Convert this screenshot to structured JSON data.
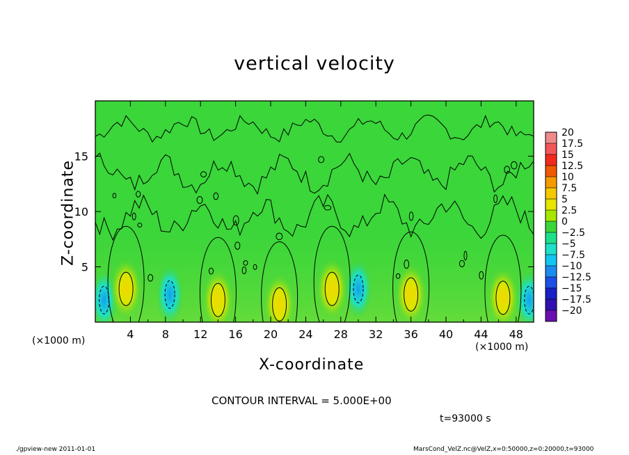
{
  "chart_data": {
    "type": "heatmap",
    "title": "vertical velocity",
    "xlabel": "X-coordinate",
    "ylabel": "Z-coordinate",
    "x_unit": "(×1000 m)",
    "xlim": [
      0,
      50
    ],
    "ylim": [
      0,
      20
    ],
    "x_ticks": [
      4,
      8,
      12,
      16,
      20,
      24,
      28,
      32,
      36,
      40,
      44,
      48
    ],
    "y_ticks": [
      5,
      10,
      15
    ],
    "colorbar": {
      "levels": [
        20,
        17.5,
        15,
        12.5,
        10,
        7.5,
        5,
        2.5,
        0,
        -2.5,
        -5,
        -7.5,
        -10,
        -12.5,
        -15,
        -17.5,
        -20
      ],
      "labels": [
        "20",
        "17.5",
        "15",
        "12.5",
        "10",
        "7.5",
        "5",
        "2.5",
        "0",
        "−2.5",
        "−5",
        "−7.5",
        "−10",
        "−12.5",
        "−15",
        "−17.5",
        "−20"
      ],
      "colors": [
        "#f08a8a",
        "#f25858",
        "#f22a1c",
        "#f05a00",
        "#f59a00",
        "#f5c800",
        "#e6e600",
        "#a8e600",
        "#3ad63a",
        "#1fe08a",
        "#1fe0c8",
        "#13c6f0",
        "#1a8cf0",
        "#1c50e6",
        "#1a20c8",
        "#3010b0",
        "#6a10b0"
      ]
    },
    "positive_cells": [
      {
        "x": 3.5,
        "z": 3.0,
        "peak": 7.5
      },
      {
        "x": 14.0,
        "z": 2.0,
        "peak": 5
      },
      {
        "x": 21.0,
        "z": 1.6,
        "peak": 7.5
      },
      {
        "x": 27.0,
        "z": 3.0,
        "peak": 7.5
      },
      {
        "x": 36.0,
        "z": 2.5,
        "peak": 5
      },
      {
        "x": 46.5,
        "z": 2.2,
        "peak": 7.5
      }
    ],
    "negative_cells": [
      {
        "x": 8.5,
        "z": 2.5,
        "peak": -7.5
      },
      {
        "x": 1.0,
        "z": 2.0,
        "peak": -5
      },
      {
        "x": 30.0,
        "z": 3.0,
        "peak": -5
      },
      {
        "x": 49.5,
        "z": 2.0,
        "peak": -5
      }
    ]
  },
  "contour_interval": "CONTOUR INTERVAL = 5.000E+00",
  "time_label": "t=93000 s",
  "footer_left": "./gpview-new   2011-01-01",
  "footer_right": "MarsCond_VelZ.nc@VelZ,x=0:50000,z=0:20000,t=93000"
}
